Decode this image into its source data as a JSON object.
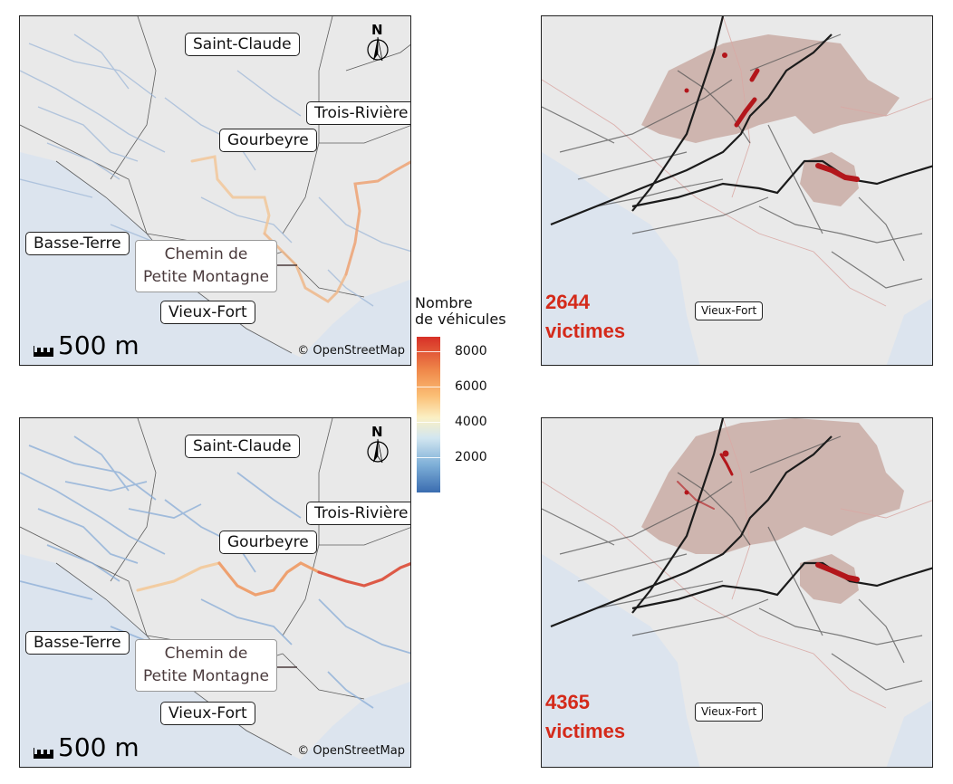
{
  "places": {
    "saint_claude": "Saint-Claude",
    "trois_rivieres": "Trois-Rivière",
    "gourbeyre": "Gourbeyre",
    "basse_terre": "Basse-Terre",
    "vieux_fort": "Vieux-Fort"
  },
  "callout": {
    "line1": "Chemin de",
    "line2": "Petite Montagne"
  },
  "north_label": "N",
  "scale_label": "500 m",
  "attribution": "© OpenStreetMap",
  "legend": {
    "title_line1": "Nombre",
    "title_line2": "de véhicules",
    "ticks": [
      "8000",
      "6000",
      "4000",
      "2000"
    ],
    "colors": [
      "#3a6cb0",
      "#d2e6f0",
      "#fbf0c4",
      "#fbbf76",
      "#f08a4b",
      "#d73027"
    ]
  },
  "victims_top": {
    "count": "2644",
    "label": "victimes"
  },
  "victims_bottom": {
    "count": "4365",
    "label": "victimes"
  },
  "colors": {
    "victims_red": "#d42a1a",
    "sea": "#dce4ee",
    "land": "#e9e9e9",
    "hazard_zone": "#b88a80"
  }
}
